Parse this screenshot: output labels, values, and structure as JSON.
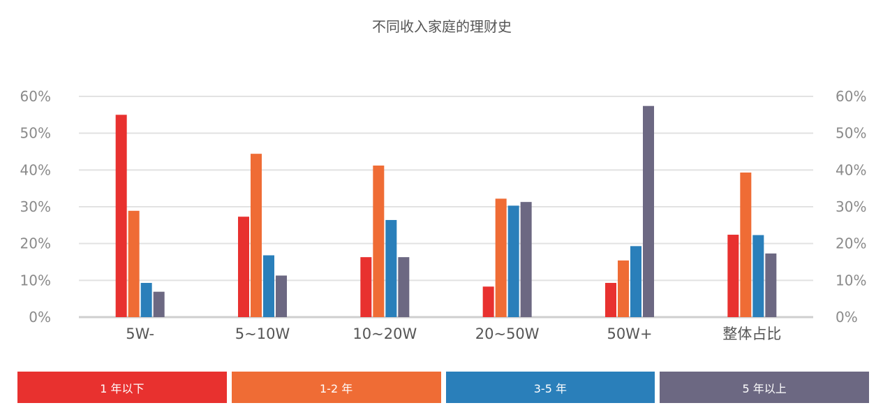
{
  "chart_data": {
    "type": "bar",
    "title": "不同收入家庭的理财史",
    "categories": [
      "5W-",
      "5~10W",
      "10~20W",
      "20~50W",
      "50W+",
      "整体占比"
    ],
    "series": [
      {
        "name": "1 年以下",
        "color": "#e8312f",
        "values": [
          55,
          27.3,
          16.3,
          8.3,
          9.3,
          22.4
        ]
      },
      {
        "name": "1-2 年",
        "color": "#ef6c35",
        "values": [
          28.9,
          44.4,
          41.2,
          32.2,
          15.4,
          39.3
        ]
      },
      {
        "name": "3-5 年",
        "color": "#2a7fba",
        "values": [
          9.3,
          16.8,
          26.4,
          30.3,
          19.3,
          22.3
        ]
      },
      {
        "name": "5 年以上",
        "color": "#6c6882",
        "values": [
          6.9,
          11.3,
          16.3,
          31.3,
          57.4,
          17.3
        ]
      }
    ],
    "yticks": [
      "0%",
      "10%",
      "20%",
      "30%",
      "40%",
      "50%",
      "60%"
    ],
    "ylim": [
      0,
      60
    ],
    "grid": true,
    "legend_position": "bottom"
  }
}
